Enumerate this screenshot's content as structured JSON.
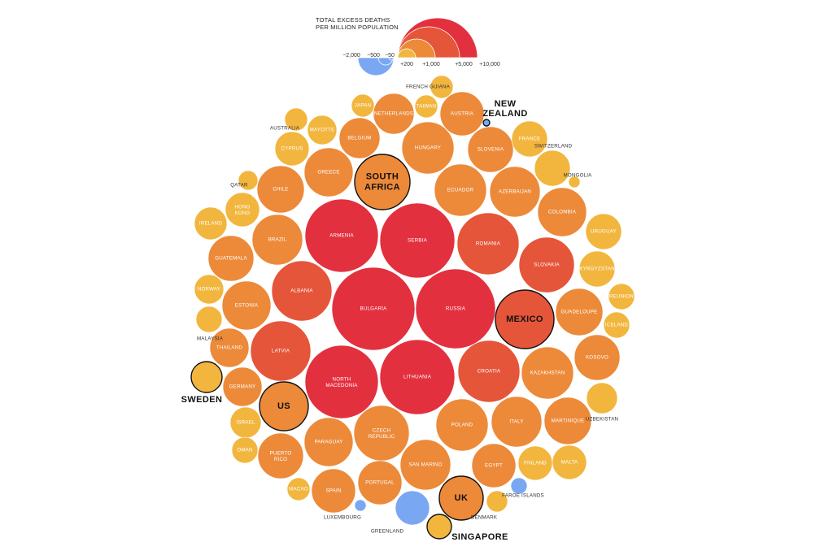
{
  "legend": {
    "title_line1": "TOTAL EXCESS DEATHS",
    "title_line2": "PER MILLION POPULATION",
    "negative_ticks": [
      "−2,000",
      "−500",
      "−50"
    ],
    "positive_ticks": [
      "+200",
      "+1,000",
      "+5,000",
      "+10,000"
    ]
  },
  "colors": {
    "negative": "#7aa7f2",
    "low": "#f2b63e",
    "mid": "#ec8a3a",
    "high": "#e5553a",
    "very_high": "#e3303f",
    "highlight_outline": "#111111"
  },
  "chart_data": {
    "type": "bubble",
    "title": "TOTAL EXCESS DEATHS PER MILLION POPULATION",
    "size_encoding": "area proportional to excess deaths per million population",
    "legend_values": [
      -2000,
      -500,
      -50,
      200,
      1000,
      5000,
      10000
    ],
    "countries": [
      {
        "name": "BULGARIA",
        "value": 9000,
        "tier": "very_high"
      },
      {
        "name": "RUSSIA",
        "value": 8800,
        "tier": "very_high"
      },
      {
        "name": "SERBIA",
        "value": 7400,
        "tier": "very_high"
      },
      {
        "name": "LITHUANIA",
        "value": 7400,
        "tier": "very_high"
      },
      {
        "name": "ARMENIA",
        "value": 7200,
        "tier": "very_high"
      },
      {
        "name": "NORTH MACEDONIA",
        "value": 7000,
        "tier": "very_high"
      },
      {
        "name": "ROMANIA",
        "value": 5000,
        "tier": "high"
      },
      {
        "name": "ALBANIA",
        "value": 4600,
        "tier": "high"
      },
      {
        "name": "LATVIA",
        "value": 4800,
        "tier": "high"
      },
      {
        "name": "CROATIA",
        "value": 4800,
        "tier": "high"
      },
      {
        "name": "SLOVAKIA",
        "value": 4000,
        "tier": "high"
      },
      {
        "name": "MEXICO",
        "value": 4500,
        "tier": "high",
        "highlight": true
      },
      {
        "name": "KAZAKHSTAN",
        "value": 3500,
        "tier": "mid"
      },
      {
        "name": "POLAND",
        "value": 3500,
        "tier": "mid"
      },
      {
        "name": "CZECH REPUBLIC",
        "value": 3900,
        "tier": "mid"
      },
      {
        "name": "ECUADOR",
        "value": 3600,
        "tier": "mid"
      },
      {
        "name": "AZERBAIJAN",
        "value": 3300,
        "tier": "mid"
      },
      {
        "name": "HUNGARY",
        "value": 3800,
        "tier": "mid"
      },
      {
        "name": "SOUTH AFRICA",
        "value": 3800,
        "tier": "mid",
        "highlight": true
      },
      {
        "name": "BRAZIL",
        "value": 3300,
        "tier": "mid"
      },
      {
        "name": "ESTONIA",
        "value": 3000,
        "tier": "mid"
      },
      {
        "name": "COLOMBIA",
        "value": 3000,
        "tier": "mid"
      },
      {
        "name": "ITALY",
        "value": 3000,
        "tier": "mid"
      },
      {
        "name": "SAN MARINO",
        "value": 3400,
        "tier": "mid"
      },
      {
        "name": "PARAGUAY",
        "value": 3000,
        "tier": "mid"
      },
      {
        "name": "US",
        "value": 3000,
        "tier": "mid",
        "highlight": true
      },
      {
        "name": "MARTINIQUE",
        "value": 2800,
        "tier": "mid"
      },
      {
        "name": "KOSOVO",
        "value": 2500,
        "tier": "mid"
      },
      {
        "name": "GUADELOUPE",
        "value": 2800,
        "tier": "mid"
      },
      {
        "name": "GREECE",
        "value": 2800,
        "tier": "mid"
      },
      {
        "name": "CHILE",
        "value": 2800,
        "tier": "mid"
      },
      {
        "name": "GUATEMALA",
        "value": 2400,
        "tier": "mid"
      },
      {
        "name": "SLOVENIA",
        "value": 2400,
        "tier": "mid"
      },
      {
        "name": "AUSTRIA",
        "value": 2200,
        "tier": "mid"
      },
      {
        "name": "PUERTO RICO",
        "value": 2500,
        "tier": "mid"
      },
      {
        "name": "PORTUGAL",
        "value": 2300,
        "tier": "mid"
      },
      {
        "name": "EGYPT",
        "value": 2300,
        "tier": "mid"
      },
      {
        "name": "SPAIN",
        "value": 2300,
        "tier": "mid"
      },
      {
        "name": "BELGIUM",
        "value": 1900,
        "tier": "mid"
      },
      {
        "name": "NETHERLANDS",
        "value": 1800,
        "tier": "mid"
      },
      {
        "name": "GERMANY",
        "value": 1800,
        "tier": "mid"
      },
      {
        "name": "THAILAND",
        "value": 1800,
        "tier": "mid"
      },
      {
        "name": "UK",
        "value": 1900,
        "tier": "mid",
        "highlight": true
      },
      {
        "name": "FRANCE",
        "value": 1500,
        "tier": "low"
      },
      {
        "name": "SWITZERLAND",
        "value": 1500,
        "tier": "low"
      },
      {
        "name": "URUGUAY",
        "value": 1500,
        "tier": "low"
      },
      {
        "name": "KYRGYZSTAN",
        "value": 1500,
        "tier": "low"
      },
      {
        "name": "IRELAND",
        "value": 1000,
        "tier": "low"
      },
      {
        "name": "HONG KONG",
        "value": 1000,
        "tier": "low"
      },
      {
        "name": "CYPRUS",
        "value": 1200,
        "tier": "low"
      },
      {
        "name": "FINLAND",
        "value": 1200,
        "tier": "low"
      },
      {
        "name": "MALTA",
        "value": 1100,
        "tier": "low"
      },
      {
        "name": "UZBEKISTAN",
        "value": 1100,
        "tier": "low"
      },
      {
        "name": "ISRAEL",
        "value": 900,
        "tier": "low"
      },
      {
        "name": "OMAN",
        "value": 800,
        "tier": "low"
      },
      {
        "name": "NORWAY",
        "value": 900,
        "tier": "low"
      },
      {
        "name": "MAYOTTE",
        "value": 900,
        "tier": "low"
      },
      {
        "name": "AUSTRALIA",
        "value": 800,
        "tier": "low"
      },
      {
        "name": "SWEDEN",
        "value": 1300,
        "tier": "low",
        "highlight": true
      },
      {
        "name": "MALAYSIA",
        "value": 800,
        "tier": "low"
      },
      {
        "name": "REUNION",
        "value": 900,
        "tier": "low"
      },
      {
        "name": "ICELAND",
        "value": 800,
        "tier": "low"
      },
      {
        "name": "MACAO",
        "value": 600,
        "tier": "low"
      },
      {
        "name": "JAPAN",
        "value": 600,
        "tier": "low"
      },
      {
        "name": "TAIWAN",
        "value": 600,
        "tier": "low"
      },
      {
        "name": "FRENCH GUIANA",
        "value": 700,
        "tier": "low"
      },
      {
        "name": "QATAR",
        "value": 400,
        "tier": "low"
      },
      {
        "name": "DENMARK",
        "value": 500,
        "tier": "low"
      },
      {
        "name": "SINGAPORE",
        "value": 800,
        "tier": "low",
        "highlight": true
      },
      {
        "name": "MONGOLIA",
        "value": 200,
        "tier": "low"
      },
      {
        "name": "GREENLAND",
        "value": -1500,
        "tier": "negative"
      },
      {
        "name": "FAROE ISLANDS",
        "value": -300,
        "tier": "negative"
      },
      {
        "name": "LUXEMBOURG",
        "value": -200,
        "tier": "negative"
      },
      {
        "name": "NEW ZEALAND",
        "value": -50,
        "tier": "negative",
        "highlight": true
      }
    ]
  }
}
